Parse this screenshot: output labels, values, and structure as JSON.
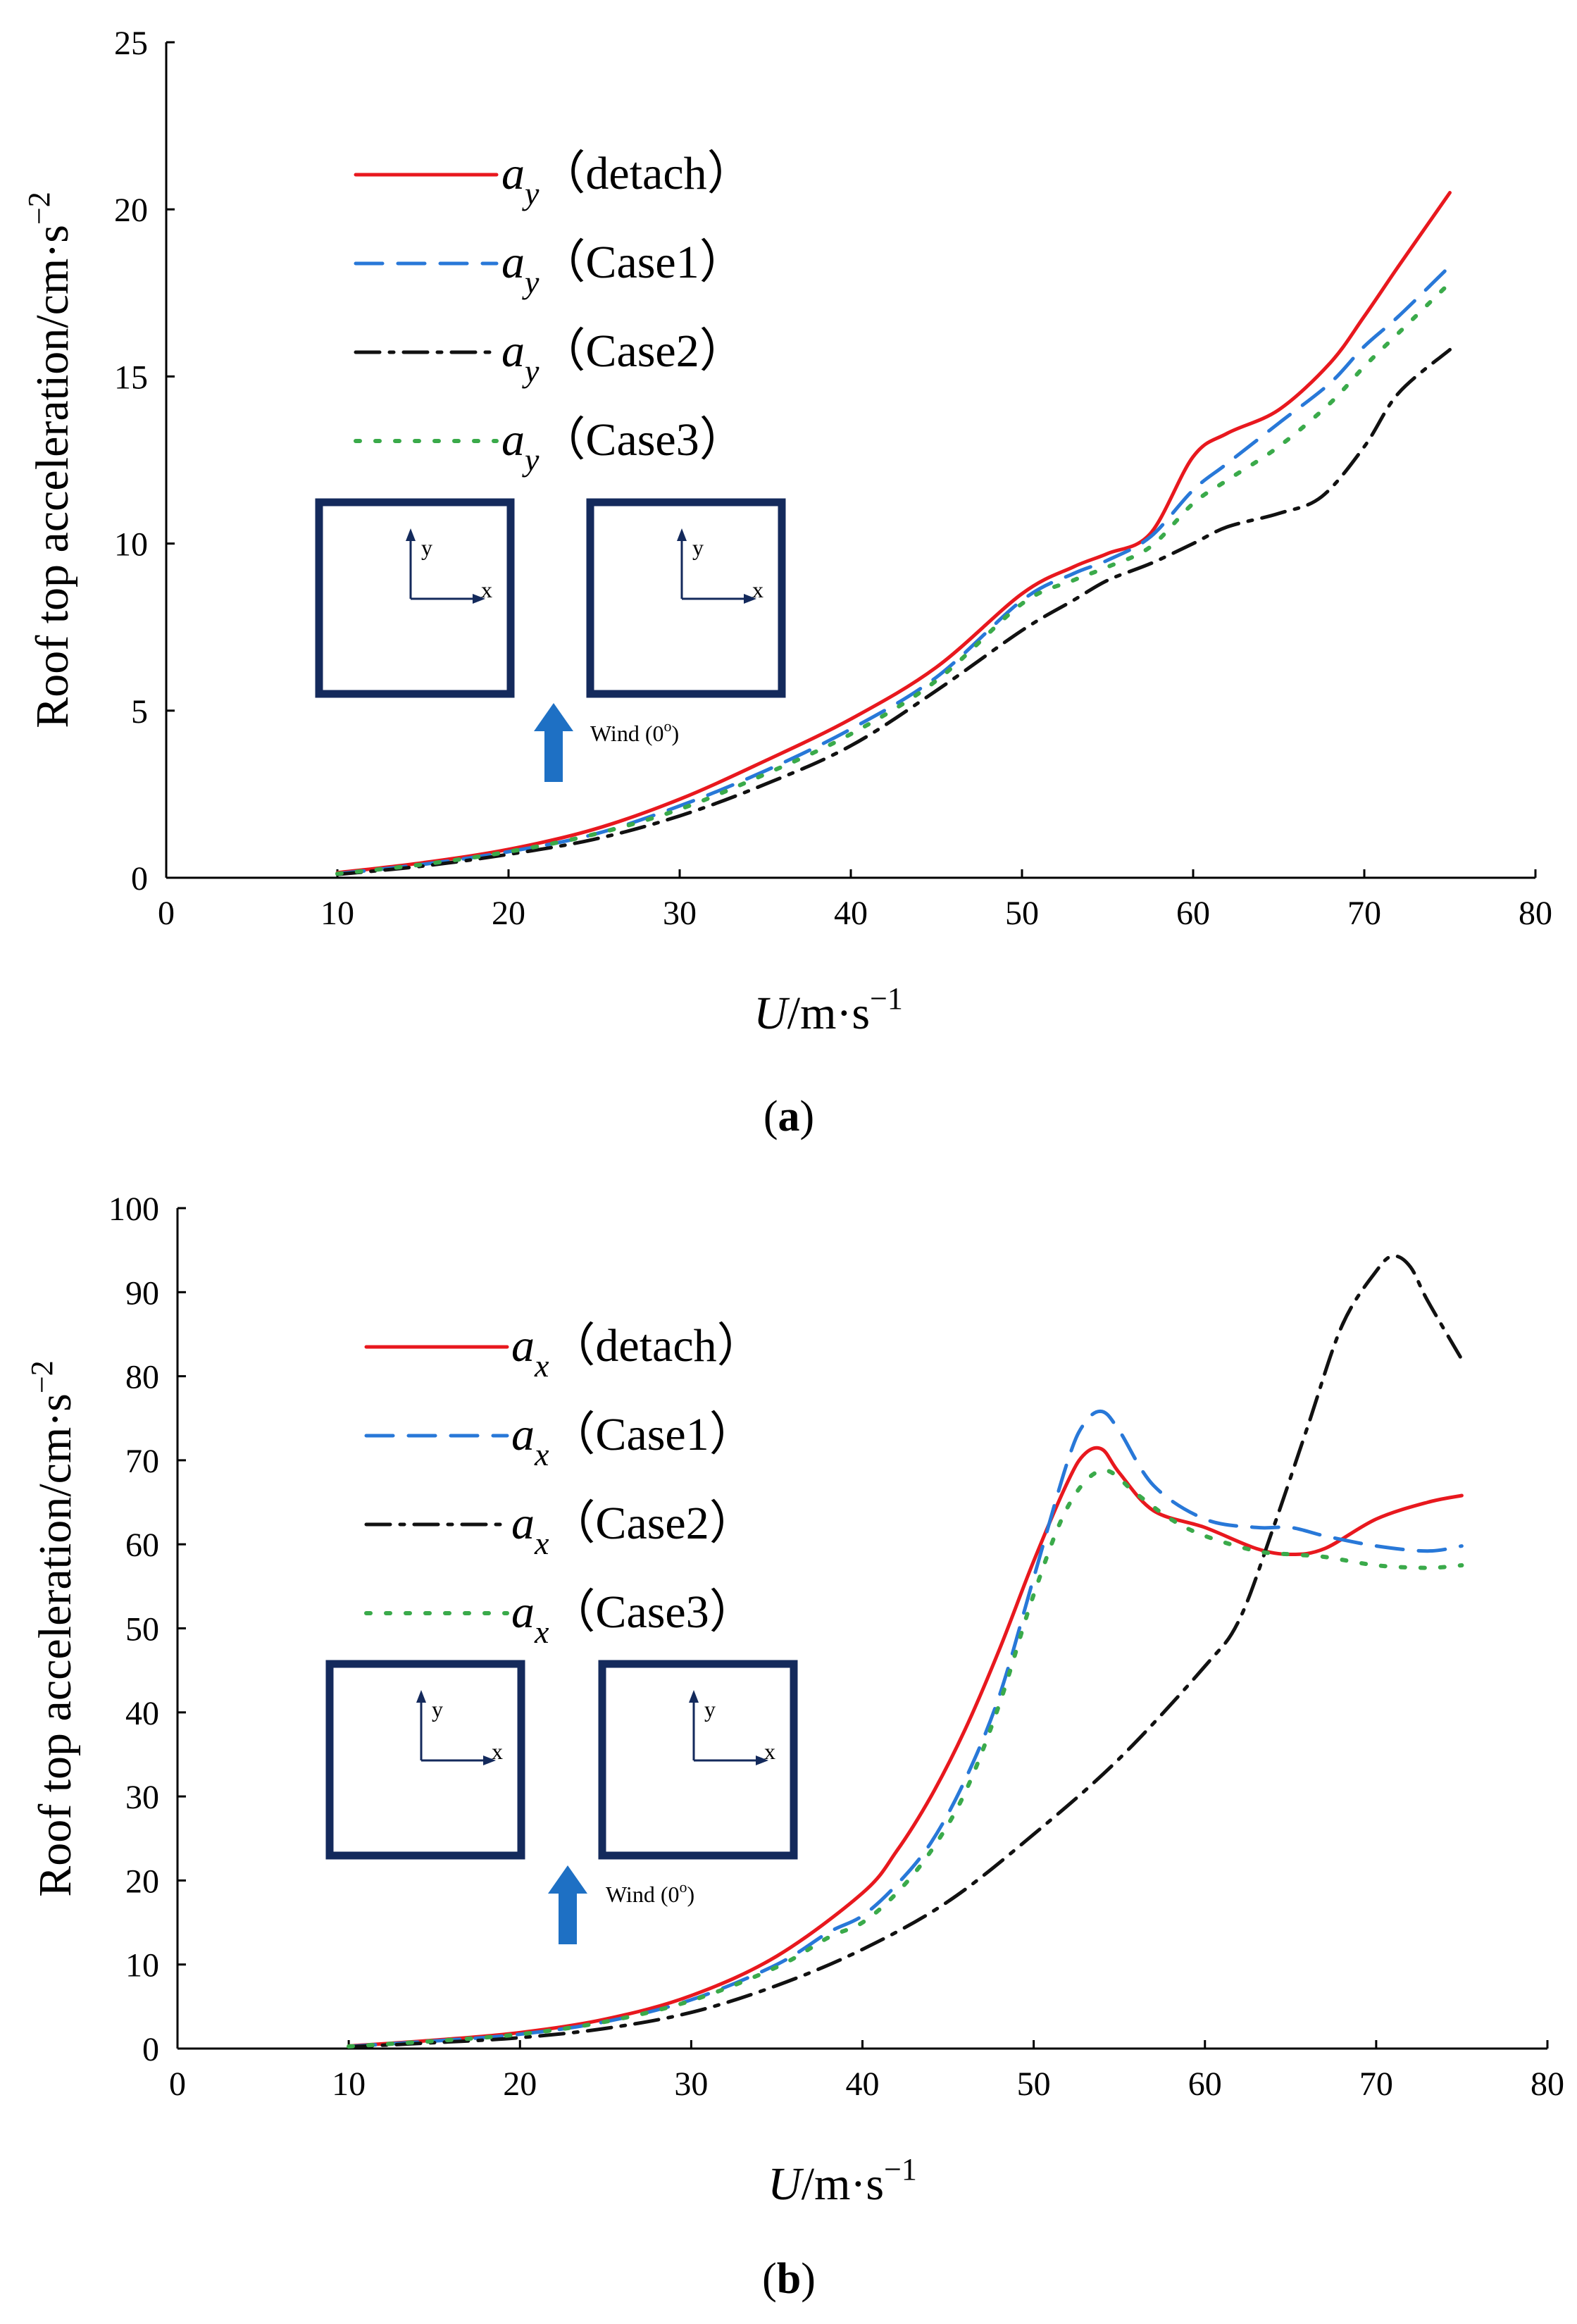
{
  "chart_data": [
    {
      "type": "line",
      "panel_label": "a",
      "ylabel": "Roof top acceleration/cm·s",
      "ylabel_sup": "−2",
      "xlabel_var": "U",
      "xlabel_unit": "/m·s",
      "xlabel_sup": "−1",
      "xlim": [
        0,
        80
      ],
      "ylim": [
        0,
        25
      ],
      "xticks": [
        "0",
        "10",
        "20",
        "30",
        "40",
        "50",
        "60",
        "70",
        "80"
      ],
      "yticks": [
        "0",
        "5",
        "10",
        "15",
        "20",
        "25"
      ],
      "legend_symbol": "a",
      "legend_sub": "y",
      "series": [
        {
          "name": "（detach）",
          "color": "#e8181e",
          "dash": "solid",
          "x": [
            10,
            15,
            20,
            25,
            30,
            35,
            40,
            45,
            50,
            53,
            55,
            57.5,
            60,
            62,
            65,
            68,
            70,
            72,
            75
          ],
          "y": [
            0.15,
            0.45,
            0.85,
            1.45,
            2.35,
            3.5,
            4.75,
            6.3,
            8.5,
            9.3,
            9.7,
            10.3,
            12.6,
            13.3,
            14.0,
            15.4,
            16.8,
            18.3,
            20.5
          ]
        },
        {
          "name": "（Case1）",
          "color": "#2878d8",
          "dash": "dash",
          "x": [
            10,
            15,
            20,
            25,
            30,
            35,
            40,
            45,
            50,
            53,
            55,
            57.5,
            60,
            62,
            65,
            68,
            70,
            72,
            75
          ],
          "y": [
            0.12,
            0.4,
            0.78,
            1.3,
            2.15,
            3.2,
            4.45,
            6.0,
            8.3,
            9.1,
            9.5,
            10.2,
            11.6,
            12.4,
            13.6,
            14.8,
            15.9,
            16.8,
            18.3
          ]
        },
        {
          "name": "（Case2）",
          "color": "#111111",
          "dash": "dashdot",
          "x": [
            10,
            15,
            20,
            25,
            30,
            35,
            40,
            45,
            50,
            53,
            55,
            57.5,
            60,
            62,
            65,
            67.5,
            70,
            72,
            75
          ],
          "y": [
            0.1,
            0.35,
            0.7,
            1.15,
            1.85,
            2.8,
            3.95,
            5.6,
            7.4,
            8.3,
            8.9,
            9.4,
            10.0,
            10.5,
            10.9,
            11.4,
            12.9,
            14.5,
            15.8
          ]
        },
        {
          "name": "（Case3）",
          "color": "#3aaa4a",
          "dash": "dot",
          "x": [
            10,
            15,
            20,
            25,
            30,
            35,
            40,
            45,
            50,
            53,
            55,
            57.5,
            60,
            62,
            65,
            68,
            70,
            72,
            75
          ],
          "y": [
            0.12,
            0.4,
            0.78,
            1.3,
            2.05,
            3.1,
            4.3,
            5.9,
            8.2,
            8.9,
            9.3,
            9.9,
            11.2,
            11.9,
            12.9,
            14.2,
            15.3,
            16.3,
            17.8
          ]
        }
      ],
      "inset": {
        "axis_y": "y",
        "axis_x": "x",
        "wind_label": "Wind (0",
        "wind_sup": "o",
        "wind_close": ")"
      }
    },
    {
      "type": "line",
      "panel_label": "b",
      "ylabel": "Roof top acceleration/cm·s",
      "ylabel_sup": "−2",
      "xlabel_var": "U",
      "xlabel_unit": "/m·s",
      "xlabel_sup": "−1",
      "xlim": [
        0,
        80
      ],
      "ylim": [
        0,
        100
      ],
      "xticks": [
        "0",
        "10",
        "20",
        "30",
        "40",
        "50",
        "60",
        "70",
        "80"
      ],
      "yticks": [
        "0",
        "10",
        "20",
        "30",
        "40",
        "50",
        "60",
        "70",
        "80",
        "90",
        "100"
      ],
      "legend_symbol": "a",
      "legend_sub": "x",
      "series": [
        {
          "name": "（detach）",
          "color": "#e8181e",
          "dash": "solid",
          "x": [
            10,
            15,
            20,
            25,
            30,
            35,
            40,
            42,
            44,
            46,
            48,
            50,
            52,
            53,
            54,
            55,
            57,
            60,
            63,
            65,
            67,
            70,
            73,
            75
          ],
          "y": [
            0.3,
            1.0,
            1.9,
            3.5,
            6.3,
            11.0,
            18.5,
            23.5,
            30.0,
            38.0,
            47.5,
            58.0,
            67.5,
            70.8,
            71.3,
            68.5,
            64.0,
            62.0,
            59.5,
            58.8,
            59.5,
            63.0,
            65.0,
            65.8
          ]
        },
        {
          "name": "（Case1）",
          "color": "#2878d8",
          "dash": "dash",
          "x": [
            10,
            15,
            20,
            25,
            30,
            35,
            38,
            40,
            42,
            44,
            46,
            48,
            50,
            52,
            53,
            54,
            55,
            57,
            60,
            63,
            65,
            67,
            70,
            73,
            75
          ],
          "y": [
            0.25,
            0.9,
            1.7,
            3.2,
            5.8,
            10.0,
            13.8,
            15.8,
            19.5,
            24.5,
            32.0,
            42.0,
            56.0,
            70.0,
            74.5,
            75.8,
            73.5,
            67.0,
            63.0,
            62.0,
            62.0,
            61.0,
            59.8,
            59.2,
            59.8
          ]
        },
        {
          "name": "（Case2）",
          "color": "#111111",
          "dash": "dashdot",
          "x": [
            10,
            15,
            20,
            25,
            30,
            35,
            40,
            45,
            50,
            55,
            60,
            62,
            64,
            66,
            68,
            70,
            71,
            72,
            73,
            75
          ],
          "y": [
            0.2,
            0.7,
            1.3,
            2.4,
            4.3,
            7.5,
            11.8,
            17.5,
            25.5,
            34.5,
            45.5,
            51.0,
            62.0,
            74.0,
            86.0,
            92.5,
            94.3,
            93.0,
            89.0,
            82.0
          ]
        },
        {
          "name": "（Case3）",
          "color": "#3aaa4a",
          "dash": "dot",
          "x": [
            10,
            15,
            20,
            25,
            30,
            35,
            38,
            40,
            42,
            44,
            46,
            48,
            50,
            52,
            54,
            56,
            58,
            60,
            63,
            65,
            67,
            70,
            73,
            75
          ],
          "y": [
            0.25,
            0.9,
            1.7,
            3.2,
            5.7,
            9.7,
            13.2,
            15.0,
            18.5,
            23.5,
            30.5,
            41.0,
            54.0,
            64.5,
            68.8,
            66.0,
            63.0,
            61.0,
            59.2,
            58.8,
            58.5,
            57.5,
            57.2,
            57.5
          ]
        }
      ],
      "inset": {
        "axis_y": "y",
        "axis_x": "x",
        "wind_label": "Wind (0",
        "wind_sup": "o",
        "wind_close": ")"
      }
    }
  ]
}
